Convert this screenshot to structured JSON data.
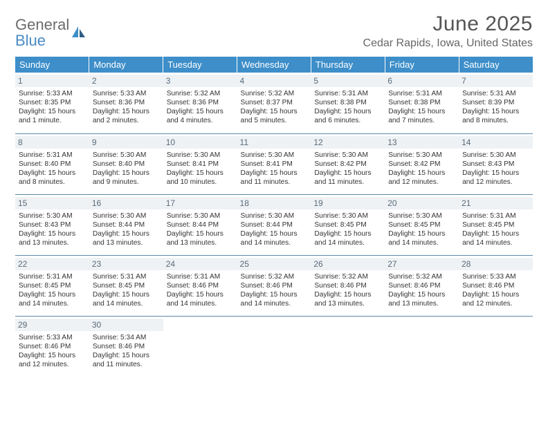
{
  "logo": {
    "line1": "General",
    "line2": "Blue"
  },
  "title": "June 2025",
  "location": "Cedar Rapids, Iowa, United States",
  "colors": {
    "header_bg": "#3d8ec9",
    "header_fg": "#ffffff",
    "daynum_bg": "#eef2f5",
    "daynum_fg": "#5a6a78",
    "row_divider": "#5a88a8",
    "title_color": "#555555",
    "location_color": "#666666",
    "text_color": "#333333",
    "logo_gray": "#6b6b6b",
    "logo_blue": "#4a8bc5"
  },
  "dayHeaders": [
    "Sunday",
    "Monday",
    "Tuesday",
    "Wednesday",
    "Thursday",
    "Friday",
    "Saturday"
  ],
  "weeks": [
    [
      {
        "day": "1",
        "sunrise": "5:33 AM",
        "sunset": "8:35 PM",
        "daylight": "15 hours and 1 minute."
      },
      {
        "day": "2",
        "sunrise": "5:33 AM",
        "sunset": "8:36 PM",
        "daylight": "15 hours and 2 minutes."
      },
      {
        "day": "3",
        "sunrise": "5:32 AM",
        "sunset": "8:36 PM",
        "daylight": "15 hours and 4 minutes."
      },
      {
        "day": "4",
        "sunrise": "5:32 AM",
        "sunset": "8:37 PM",
        "daylight": "15 hours and 5 minutes."
      },
      {
        "day": "5",
        "sunrise": "5:31 AM",
        "sunset": "8:38 PM",
        "daylight": "15 hours and 6 minutes."
      },
      {
        "day": "6",
        "sunrise": "5:31 AM",
        "sunset": "8:38 PM",
        "daylight": "15 hours and 7 minutes."
      },
      {
        "day": "7",
        "sunrise": "5:31 AM",
        "sunset": "8:39 PM",
        "daylight": "15 hours and 8 minutes."
      }
    ],
    [
      {
        "day": "8",
        "sunrise": "5:31 AM",
        "sunset": "8:40 PM",
        "daylight": "15 hours and 8 minutes."
      },
      {
        "day": "9",
        "sunrise": "5:30 AM",
        "sunset": "8:40 PM",
        "daylight": "15 hours and 9 minutes."
      },
      {
        "day": "10",
        "sunrise": "5:30 AM",
        "sunset": "8:41 PM",
        "daylight": "15 hours and 10 minutes."
      },
      {
        "day": "11",
        "sunrise": "5:30 AM",
        "sunset": "8:41 PM",
        "daylight": "15 hours and 11 minutes."
      },
      {
        "day": "12",
        "sunrise": "5:30 AM",
        "sunset": "8:42 PM",
        "daylight": "15 hours and 11 minutes."
      },
      {
        "day": "13",
        "sunrise": "5:30 AM",
        "sunset": "8:42 PM",
        "daylight": "15 hours and 12 minutes."
      },
      {
        "day": "14",
        "sunrise": "5:30 AM",
        "sunset": "8:43 PM",
        "daylight": "15 hours and 12 minutes."
      }
    ],
    [
      {
        "day": "15",
        "sunrise": "5:30 AM",
        "sunset": "8:43 PM",
        "daylight": "15 hours and 13 minutes."
      },
      {
        "day": "16",
        "sunrise": "5:30 AM",
        "sunset": "8:44 PM",
        "daylight": "15 hours and 13 minutes."
      },
      {
        "day": "17",
        "sunrise": "5:30 AM",
        "sunset": "8:44 PM",
        "daylight": "15 hours and 13 minutes."
      },
      {
        "day": "18",
        "sunrise": "5:30 AM",
        "sunset": "8:44 PM",
        "daylight": "15 hours and 14 minutes."
      },
      {
        "day": "19",
        "sunrise": "5:30 AM",
        "sunset": "8:45 PM",
        "daylight": "15 hours and 14 minutes."
      },
      {
        "day": "20",
        "sunrise": "5:30 AM",
        "sunset": "8:45 PM",
        "daylight": "15 hours and 14 minutes."
      },
      {
        "day": "21",
        "sunrise": "5:31 AM",
        "sunset": "8:45 PM",
        "daylight": "15 hours and 14 minutes."
      }
    ],
    [
      {
        "day": "22",
        "sunrise": "5:31 AM",
        "sunset": "8:45 PM",
        "daylight": "15 hours and 14 minutes."
      },
      {
        "day": "23",
        "sunrise": "5:31 AM",
        "sunset": "8:45 PM",
        "daylight": "15 hours and 14 minutes."
      },
      {
        "day": "24",
        "sunrise": "5:31 AM",
        "sunset": "8:46 PM",
        "daylight": "15 hours and 14 minutes."
      },
      {
        "day": "25",
        "sunrise": "5:32 AM",
        "sunset": "8:46 PM",
        "daylight": "15 hours and 14 minutes."
      },
      {
        "day": "26",
        "sunrise": "5:32 AM",
        "sunset": "8:46 PM",
        "daylight": "15 hours and 13 minutes."
      },
      {
        "day": "27",
        "sunrise": "5:32 AM",
        "sunset": "8:46 PM",
        "daylight": "15 hours and 13 minutes."
      },
      {
        "day": "28",
        "sunrise": "5:33 AM",
        "sunset": "8:46 PM",
        "daylight": "15 hours and 12 minutes."
      }
    ],
    [
      {
        "day": "29",
        "sunrise": "5:33 AM",
        "sunset": "8:46 PM",
        "daylight": "15 hours and 12 minutes."
      },
      {
        "day": "30",
        "sunrise": "5:34 AM",
        "sunset": "8:46 PM",
        "daylight": "15 hours and 11 minutes."
      },
      null,
      null,
      null,
      null,
      null
    ]
  ],
  "labels": {
    "sunrise": "Sunrise:",
    "sunset": "Sunset:",
    "daylight": "Daylight:"
  }
}
